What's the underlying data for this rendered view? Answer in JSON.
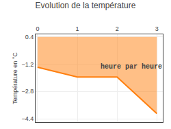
{
  "chart_data": {
    "type": "area",
    "title": "Evolution de la température",
    "y_label": "Température en °C",
    "x": [
      0,
      1,
      2,
      3
    ],
    "values": [
      -1.38,
      -1.95,
      -1.95,
      -4.1
    ],
    "fill_top": 0.4,
    "xlim": [
      -0.05,
      3.15
    ],
    "ylim": [
      -4.6,
      0.55
    ],
    "xticks": [
      0,
      1,
      2,
      3
    ],
    "yticks": [
      0.4,
      -1.2,
      -2.8,
      -4.4
    ],
    "grid": true,
    "annotations": [
      {
        "text": "heure par heure",
        "x": 1.55,
        "y": -1.05
      }
    ]
  }
}
